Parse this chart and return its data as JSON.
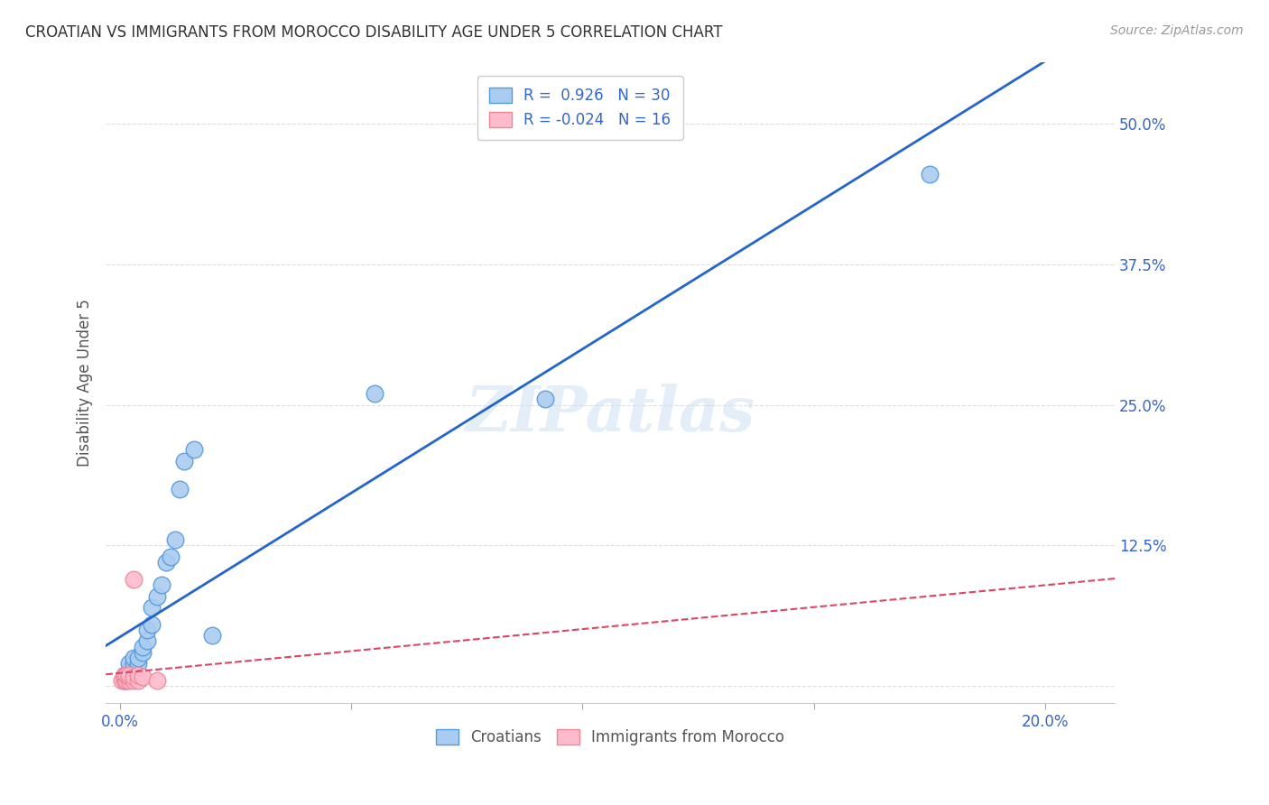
{
  "title": "CROATIAN VS IMMIGRANTS FROM MOROCCO DISABILITY AGE UNDER 5 CORRELATION CHART",
  "source": "Source: ZipAtlas.com",
  "ylabel": "Disability Age Under 5",
  "x_ticks": [
    0.0,
    0.05,
    0.1,
    0.15,
    0.2
  ],
  "x_tick_labels": [
    "0.0%",
    "",
    "",
    "",
    "20.0%"
  ],
  "y_ticks": [
    0.0,
    0.125,
    0.25,
    0.375,
    0.5
  ],
  "y_tick_labels": [
    "",
    "12.5%",
    "25.0%",
    "37.5%",
    "50.0%"
  ],
  "xlim": [
    -0.003,
    0.215
  ],
  "ylim": [
    -0.015,
    0.555
  ],
  "croatian_x": [
    0.001,
    0.001,
    0.0015,
    0.002,
    0.002,
    0.002,
    0.003,
    0.003,
    0.003,
    0.003,
    0.004,
    0.004,
    0.005,
    0.005,
    0.006,
    0.006,
    0.007,
    0.007,
    0.008,
    0.009,
    0.01,
    0.011,
    0.012,
    0.013,
    0.014,
    0.016,
    0.02,
    0.055,
    0.092,
    0.175
  ],
  "croatian_y": [
    0.005,
    0.01,
    0.008,
    0.01,
    0.015,
    0.02,
    0.01,
    0.015,
    0.02,
    0.025,
    0.02,
    0.025,
    0.03,
    0.035,
    0.04,
    0.05,
    0.055,
    0.07,
    0.08,
    0.09,
    0.11,
    0.115,
    0.13,
    0.175,
    0.2,
    0.21,
    0.045,
    0.26,
    0.255,
    0.455
  ],
  "morocco_x": [
    0.0005,
    0.001,
    0.001,
    0.001,
    0.0015,
    0.0015,
    0.002,
    0.002,
    0.002,
    0.003,
    0.003,
    0.003,
    0.004,
    0.004,
    0.005,
    0.008
  ],
  "morocco_y": [
    0.005,
    0.005,
    0.008,
    0.01,
    0.005,
    0.01,
    0.005,
    0.008,
    0.01,
    0.005,
    0.008,
    0.095,
    0.005,
    0.01,
    0.008,
    0.005
  ],
  "croatian_color": "#aaccf0",
  "croatian_edge_color": "#5599dd",
  "morocco_color": "#ffbbcc",
  "morocco_edge_color": "#ee8899",
  "regression_blue_color": "#2266cc",
  "regression_pink_color": "#dd4466",
  "r_croatian": 0.926,
  "n_croatian": 30,
  "r_morocco": -0.024,
  "n_morocco": 16,
  "watermark": "ZIPatlas",
  "background_color": "#ffffff",
  "grid_color": "#dddddd"
}
